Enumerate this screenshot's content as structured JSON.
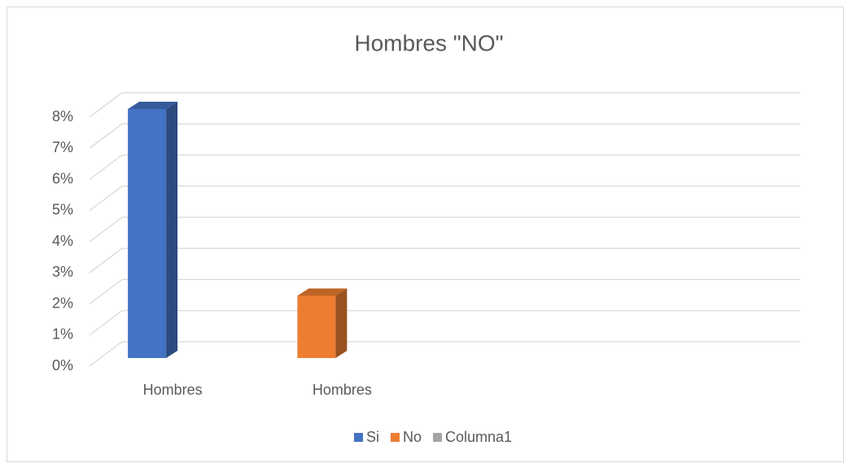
{
  "chart_data": {
    "type": "bar3d",
    "title": "Hombres \"NO\"",
    "categories": [
      "Hombres",
      "Hombres",
      null,
      null
    ],
    "series": [
      {
        "name": "Si",
        "color": "#4472c4",
        "values": [
          8,
          null,
          null,
          null
        ]
      },
      {
        "name": "No",
        "color": "#ed7d31",
        "values": [
          null,
          2,
          null,
          null
        ]
      },
      {
        "name": "Columna1",
        "color": "#a5a5a5",
        "values": [
          null,
          null,
          null,
          null
        ]
      }
    ],
    "ylim": [
      0,
      8
    ],
    "yticks": [
      {
        "value": 0,
        "label": "0%"
      },
      {
        "value": 1,
        "label": "1%"
      },
      {
        "value": 2,
        "label": "2%"
      },
      {
        "value": 3,
        "label": "3%"
      },
      {
        "value": 4,
        "label": "4%"
      },
      {
        "value": 5,
        "label": "5%"
      },
      {
        "value": 6,
        "label": "6%"
      },
      {
        "value": 7,
        "label": "7%"
      },
      {
        "value": 8,
        "label": "8%"
      }
    ],
    "grid": true,
    "legend": "bottom"
  }
}
